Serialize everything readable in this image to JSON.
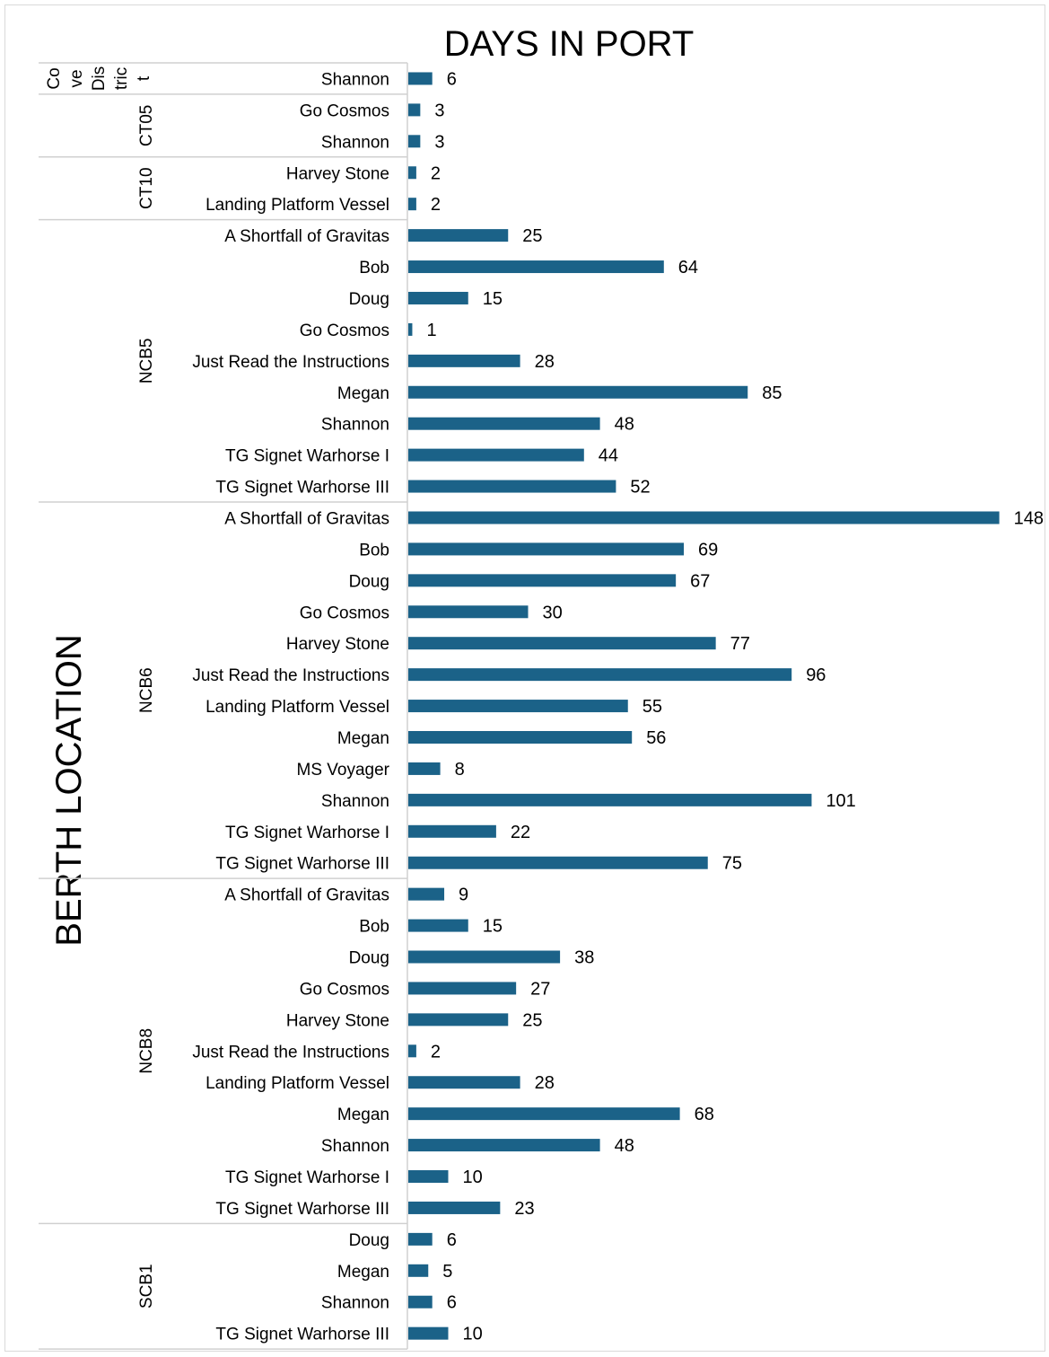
{
  "chart_data": {
    "type": "bar",
    "orientation": "horizontal",
    "title": "DAYS IN PORT",
    "ylabel": "BERTH LOCATION",
    "xlabel": "",
    "bar_color": "#1b6288",
    "data_labels": true,
    "gridlines": false,
    "legend": "none",
    "groups": [
      {
        "name": "Cove District",
        "display": [
          "Co",
          "ve",
          "Dis",
          "tric",
          "t"
        ],
        "items": [
          {
            "label": "Shannon",
            "value": 6
          }
        ]
      },
      {
        "name": "CT05",
        "items": [
          {
            "label": "Go Cosmos",
            "value": 3
          },
          {
            "label": "Shannon",
            "value": 3
          }
        ]
      },
      {
        "name": "CT10",
        "items": [
          {
            "label": "Harvey Stone",
            "value": 2
          },
          {
            "label": "Landing Platform Vessel",
            "value": 2
          }
        ]
      },
      {
        "name": "NCB5",
        "items": [
          {
            "label": "A Shortfall of Gravitas",
            "value": 25
          },
          {
            "label": "Bob",
            "value": 64
          },
          {
            "label": "Doug",
            "value": 15
          },
          {
            "label": "Go Cosmos",
            "value": 1
          },
          {
            "label": "Just Read the Instructions",
            "value": 28
          },
          {
            "label": "Megan",
            "value": 85
          },
          {
            "label": "Shannon",
            "value": 48
          },
          {
            "label": "TG Signet Warhorse I",
            "value": 44
          },
          {
            "label": "TG Signet Warhorse III",
            "value": 52
          }
        ]
      },
      {
        "name": "NCB6",
        "items": [
          {
            "label": "A Shortfall of Gravitas",
            "value": 148
          },
          {
            "label": "Bob",
            "value": 69
          },
          {
            "label": "Doug",
            "value": 67
          },
          {
            "label": "Go Cosmos",
            "value": 30
          },
          {
            "label": "Harvey Stone",
            "value": 77
          },
          {
            "label": "Just Read the Instructions",
            "value": 96
          },
          {
            "label": "Landing Platform Vessel",
            "value": 55
          },
          {
            "label": "Megan",
            "value": 56
          },
          {
            "label": "MS Voyager",
            "value": 8
          },
          {
            "label": "Shannon",
            "value": 101
          },
          {
            "label": "TG Signet Warhorse I",
            "value": 22
          },
          {
            "label": "TG Signet Warhorse III",
            "value": 75
          }
        ]
      },
      {
        "name": "NCB8",
        "items": [
          {
            "label": "A Shortfall of Gravitas",
            "value": 9
          },
          {
            "label": "Bob",
            "value": 15
          },
          {
            "label": "Doug",
            "value": 38
          },
          {
            "label": "Go Cosmos",
            "value": 27
          },
          {
            "label": "Harvey Stone",
            "value": 25
          },
          {
            "label": "Just Read the Instructions",
            "value": 2
          },
          {
            "label": "Landing Platform Vessel",
            "value": 28
          },
          {
            "label": "Megan",
            "value": 68
          },
          {
            "label": "Shannon",
            "value": 48
          },
          {
            "label": "TG Signet Warhorse I",
            "value": 10
          },
          {
            "label": "TG Signet Warhorse III",
            "value": 23
          }
        ]
      },
      {
        "name": "SCB1",
        "items": [
          {
            "label": "Doug",
            "value": 6
          },
          {
            "label": "Megan",
            "value": 5
          },
          {
            "label": "Shannon",
            "value": 6
          },
          {
            "label": "TG Signet Warhorse III",
            "value": 10
          }
        ]
      }
    ]
  }
}
